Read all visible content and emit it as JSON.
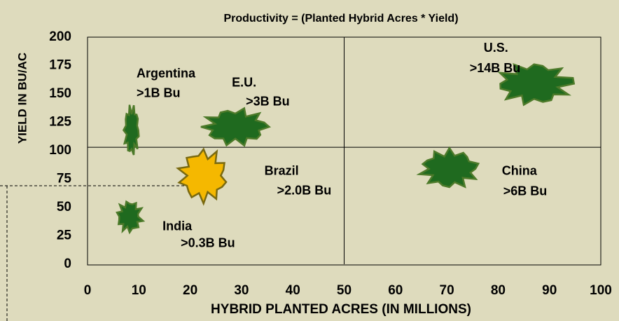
{
  "chart_data": {
    "type": "scatter",
    "title": "Productivity = (Planted Hybrid Acres * Yield)",
    "xlabel": "HYBRID PLANTED ACRES (IN MILLIONS)",
    "ylabel": "YIELD IN BU/AC",
    "labels": [
      "Argentina",
      "E.U.",
      "U.S.",
      "China",
      "Brazil",
      "India"
    ],
    "notes": [
      ">1B Bu",
      ">3B Bu",
      ">14B Bu",
      ">6B Bu",
      ">2.0B Bu",
      ">0.3B Bu"
    ],
    "x": [
      8.6,
      28.8,
      87,
      70.5,
      22.6,
      8.2
    ],
    "values": [
      118,
      121,
      159,
      84,
      78,
      42
    ],
    "colors": [
      "#1f6a1f",
      "#1f6a1f",
      "#1f6a1f",
      "#1f6a1f",
      "#f5b800",
      "#1f6a1f"
    ],
    "xlim": [
      0,
      100
    ],
    "xticks": [
      0,
      10,
      20,
      30,
      40,
      50,
      60,
      70,
      80,
      90,
      100
    ],
    "ylim": [
      0,
      200
    ],
    "yticks": [
      0,
      25,
      50,
      75,
      100,
      125,
      150,
      175,
      200
    ],
    "quadrant_lines": {
      "x": 50,
      "y": 103
    }
  }
}
